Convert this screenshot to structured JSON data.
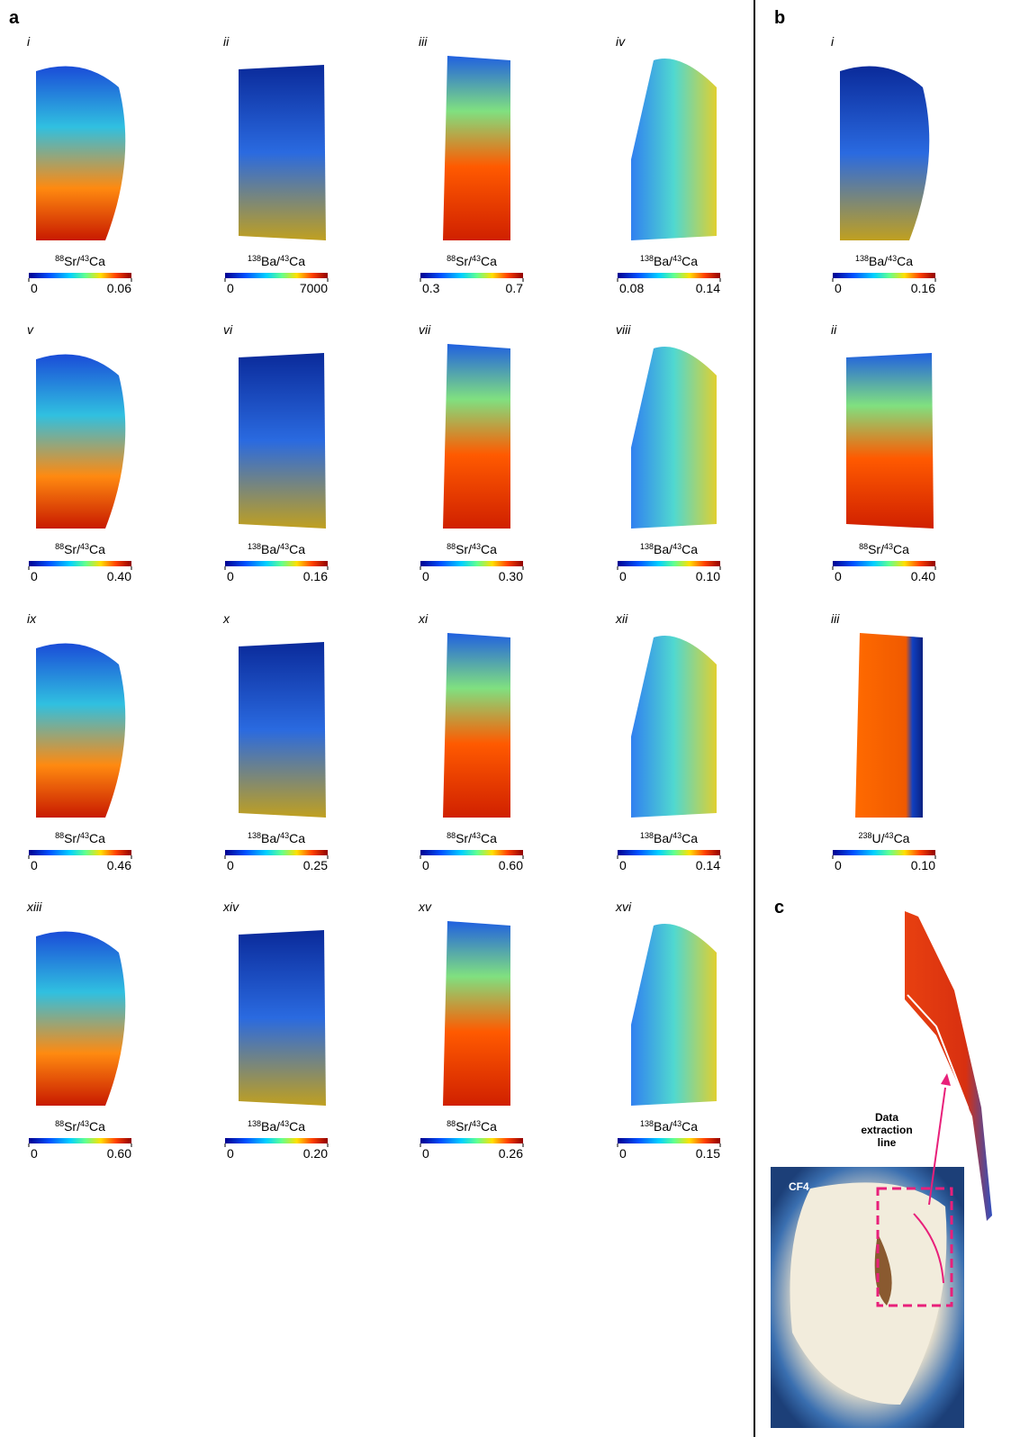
{
  "panels": [
    {
      "letter": "a",
      "maps": [
        {
          "numeral": "i",
          "label": {
            "sup1": "88",
            "base1": "Sr/",
            "sup2": "43",
            "base2": "Ca"
          },
          "min": "0",
          "max": "0.06"
        },
        {
          "numeral": "ii",
          "label": {
            "sup1": "138",
            "base1": "Ba/",
            "sup2": "43",
            "base2": "Ca"
          },
          "min": "0",
          "max": "7000"
        },
        {
          "numeral": "iii",
          "label": {
            "sup1": "88",
            "base1": "Sr/",
            "sup2": "43",
            "base2": "Ca"
          },
          "min": "0.3",
          "max": "0.7"
        },
        {
          "numeral": "iv",
          "label": {
            "sup1": "138",
            "base1": "Ba/",
            "sup2": "43",
            "base2": "Ca"
          },
          "min": "0.08",
          "max": "0.14"
        },
        {
          "numeral": "v",
          "label": {
            "sup1": "88",
            "base1": "Sr/",
            "sup2": "43",
            "base2": "Ca"
          },
          "min": "0",
          "max": "0.40"
        },
        {
          "numeral": "vi",
          "label": {
            "sup1": "138",
            "base1": "Ba/",
            "sup2": "43",
            "base2": "Ca"
          },
          "min": "0",
          "max": "0.16"
        },
        {
          "numeral": "vii",
          "label": {
            "sup1": "88",
            "base1": "Sr/",
            "sup2": "43",
            "base2": "Ca"
          },
          "min": "0",
          "max": "0.30"
        },
        {
          "numeral": "viii",
          "label": {
            "sup1": "138",
            "base1": "Ba/",
            "sup2": "43",
            "base2": "Ca"
          },
          "min": "0",
          "max": "0.10"
        },
        {
          "numeral": "ix",
          "label": {
            "sup1": "88",
            "base1": "Sr/",
            "sup2": "43",
            "base2": "Ca"
          },
          "min": "0",
          "max": "0.46"
        },
        {
          "numeral": "x",
          "label": {
            "sup1": "138",
            "base1": "Ba/",
            "sup2": "43",
            "base2": "Ca"
          },
          "min": "0",
          "max": "0.25"
        },
        {
          "numeral": "xi",
          "label": {
            "sup1": "88",
            "base1": "Sr/",
            "sup2": "43",
            "base2": "Ca"
          },
          "min": "0",
          "max": "0.60"
        },
        {
          "numeral": "xii",
          "label": {
            "sup1": "138",
            "base1": "Ba/",
            "sup2": "43",
            "base2": "Ca"
          },
          "min": "0",
          "max": "0.14"
        },
        {
          "numeral": "xiii",
          "label": {
            "sup1": "88",
            "base1": "Sr/",
            "sup2": "43",
            "base2": "Ca"
          },
          "min": "0",
          "max": "0.60"
        },
        {
          "numeral": "xiv",
          "label": {
            "sup1": "138",
            "base1": "Ba/",
            "sup2": "43",
            "base2": "Ca"
          },
          "min": "0",
          "max": "0.20"
        },
        {
          "numeral": "xv",
          "label": {
            "sup1": "88",
            "base1": "Sr/",
            "sup2": "43",
            "base2": "Ca"
          },
          "min": "0",
          "max": "0.26"
        },
        {
          "numeral": "xvi",
          "label": {
            "sup1": "138",
            "base1": "Ba/",
            "sup2": "43",
            "base2": "Ca"
          },
          "min": "0",
          "max": "0.15"
        }
      ]
    },
    {
      "letter": "b",
      "maps": [
        {
          "numeral": "i",
          "label": {
            "sup1": "138",
            "base1": "Ba/",
            "sup2": "43",
            "base2": "Ca"
          },
          "min": "0",
          "max": "0.16"
        },
        {
          "numeral": "ii",
          "label": {
            "sup1": "88",
            "base1": "Sr/",
            "sup2": "43",
            "base2": "Ca"
          },
          "min": "0",
          "max": "0.40"
        },
        {
          "numeral": "iii",
          "label": {
            "sup1": "238",
            "base1": "U/",
            "sup2": "43",
            "base2": "Ca"
          },
          "min": "0",
          "max": "0.10"
        }
      ]
    },
    {
      "letter": "c",
      "annotation": [
        "Data",
        "extraction",
        "line"
      ],
      "photo_label": "CF4"
    }
  ]
}
